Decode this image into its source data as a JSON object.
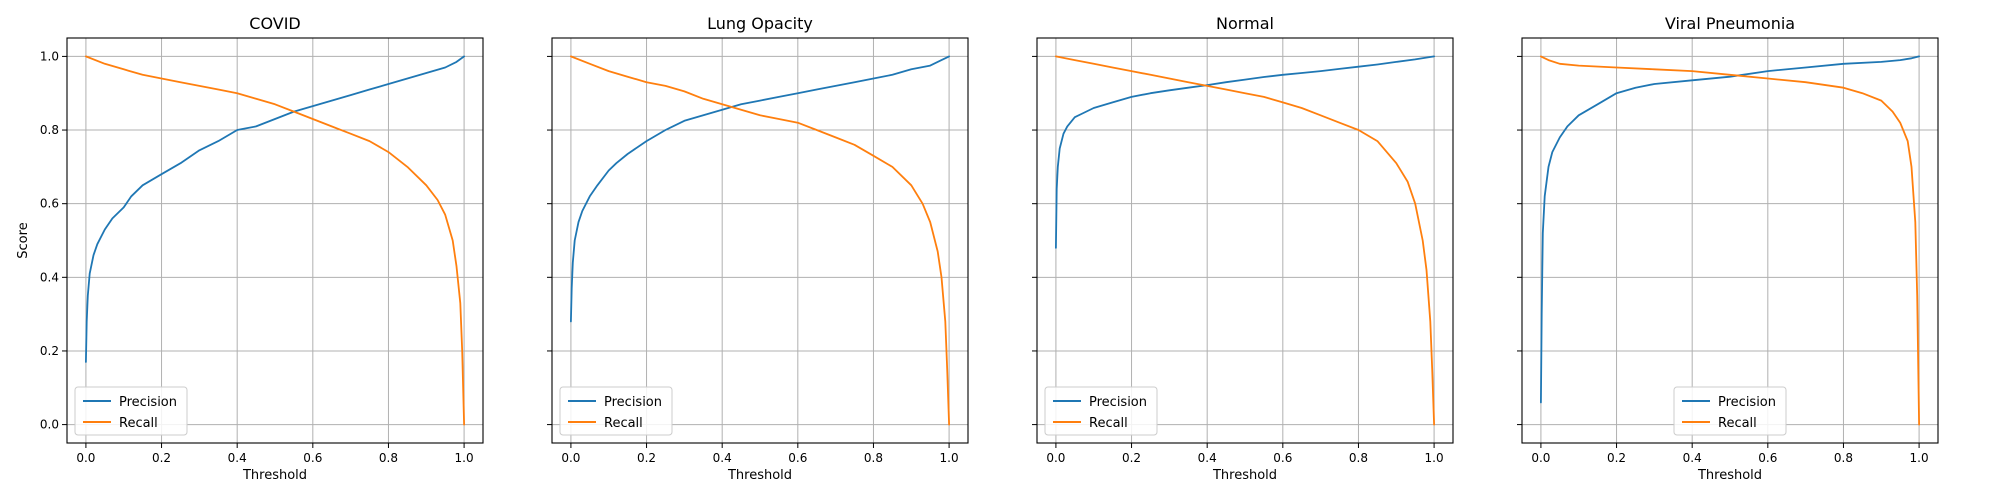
{
  "chart_data": [
    {
      "type": "line",
      "title": "COVID",
      "xlabel": "Threshold",
      "ylabel": "Score",
      "xlim": [
        -0.05,
        1.05
      ],
      "ylim": [
        -0.05,
        1.05
      ],
      "xticks": [
        "0.0",
        "0.2",
        "0.4",
        "0.6",
        "0.8",
        "1.0"
      ],
      "yticks": [
        "0.0",
        "0.2",
        "0.4",
        "0.6",
        "0.8",
        "1.0"
      ],
      "grid": true,
      "legend_position": "lower-left",
      "series": [
        {
          "name": "Precision",
          "color": "#1f77b4",
          "x": [
            0.0,
            0.002,
            0.005,
            0.01,
            0.02,
            0.03,
            0.05,
            0.07,
            0.1,
            0.12,
            0.15,
            0.2,
            0.25,
            0.3,
            0.35,
            0.4,
            0.45,
            0.5,
            0.55,
            0.6,
            0.65,
            0.7,
            0.75,
            0.8,
            0.85,
            0.9,
            0.95,
            0.98,
            1.0
          ],
          "y": [
            0.17,
            0.28,
            0.35,
            0.41,
            0.46,
            0.49,
            0.53,
            0.56,
            0.59,
            0.62,
            0.65,
            0.68,
            0.71,
            0.745,
            0.77,
            0.8,
            0.81,
            0.83,
            0.85,
            0.865,
            0.88,
            0.895,
            0.91,
            0.925,
            0.94,
            0.955,
            0.97,
            0.985,
            1.0
          ]
        },
        {
          "name": "Recall",
          "color": "#ff7f0e",
          "x": [
            0.0,
            0.05,
            0.1,
            0.15,
            0.2,
            0.25,
            0.3,
            0.35,
            0.4,
            0.45,
            0.5,
            0.55,
            0.6,
            0.65,
            0.7,
            0.75,
            0.8,
            0.85,
            0.9,
            0.93,
            0.95,
            0.97,
            0.98,
            0.99,
            0.995,
            1.0
          ],
          "y": [
            1.0,
            0.98,
            0.965,
            0.95,
            0.94,
            0.93,
            0.92,
            0.91,
            0.9,
            0.885,
            0.87,
            0.85,
            0.83,
            0.81,
            0.79,
            0.77,
            0.74,
            0.7,
            0.65,
            0.61,
            0.57,
            0.5,
            0.43,
            0.33,
            0.2,
            0.0
          ]
        }
      ]
    },
    {
      "type": "line",
      "title": "Lung Opacity",
      "xlabel": "Threshold",
      "ylabel": "",
      "xlim": [
        -0.05,
        1.05
      ],
      "ylim": [
        -0.05,
        1.05
      ],
      "xticks": [
        "0.0",
        "0.2",
        "0.4",
        "0.6",
        "0.8",
        "1.0"
      ],
      "yticks": [
        "0.0",
        "0.2",
        "0.4",
        "0.6",
        "0.8",
        "1.0"
      ],
      "grid": true,
      "legend_position": "lower-left",
      "series": [
        {
          "name": "Precision",
          "color": "#1f77b4",
          "x": [
            0.0,
            0.002,
            0.005,
            0.01,
            0.02,
            0.03,
            0.05,
            0.07,
            0.1,
            0.12,
            0.15,
            0.2,
            0.25,
            0.3,
            0.35,
            0.4,
            0.45,
            0.5,
            0.55,
            0.6,
            0.65,
            0.7,
            0.75,
            0.8,
            0.85,
            0.9,
            0.95,
            0.98,
            1.0
          ],
          "y": [
            0.28,
            0.37,
            0.44,
            0.5,
            0.55,
            0.58,
            0.62,
            0.65,
            0.69,
            0.71,
            0.735,
            0.77,
            0.8,
            0.825,
            0.84,
            0.855,
            0.87,
            0.88,
            0.89,
            0.9,
            0.91,
            0.92,
            0.93,
            0.94,
            0.95,
            0.965,
            0.975,
            0.99,
            1.0
          ]
        },
        {
          "name": "Recall",
          "color": "#ff7f0e",
          "x": [
            0.0,
            0.05,
            0.1,
            0.15,
            0.2,
            0.25,
            0.3,
            0.35,
            0.4,
            0.45,
            0.5,
            0.55,
            0.6,
            0.65,
            0.7,
            0.75,
            0.8,
            0.85,
            0.9,
            0.93,
            0.95,
            0.97,
            0.98,
            0.99,
            0.995,
            1.0
          ],
          "y": [
            1.0,
            0.98,
            0.96,
            0.945,
            0.93,
            0.92,
            0.905,
            0.885,
            0.87,
            0.855,
            0.84,
            0.83,
            0.82,
            0.8,
            0.78,
            0.76,
            0.73,
            0.7,
            0.65,
            0.6,
            0.55,
            0.47,
            0.4,
            0.28,
            0.15,
            0.0
          ]
        }
      ]
    },
    {
      "type": "line",
      "title": "Normal",
      "xlabel": "Threshold",
      "ylabel": "",
      "xlim": [
        -0.05,
        1.05
      ],
      "ylim": [
        -0.05,
        1.05
      ],
      "xticks": [
        "0.0",
        "0.2",
        "0.4",
        "0.6",
        "0.8",
        "1.0"
      ],
      "yticks": [
        "0.0",
        "0.2",
        "0.4",
        "0.6",
        "0.8",
        "1.0"
      ],
      "grid": true,
      "legend_position": "lower-left",
      "series": [
        {
          "name": "Precision",
          "color": "#1f77b4",
          "x": [
            0.0,
            0.002,
            0.005,
            0.01,
            0.02,
            0.03,
            0.05,
            0.07,
            0.1,
            0.15,
            0.2,
            0.25,
            0.3,
            0.35,
            0.4,
            0.45,
            0.5,
            0.55,
            0.6,
            0.65,
            0.7,
            0.75,
            0.8,
            0.85,
            0.9,
            0.95,
            1.0
          ],
          "y": [
            0.48,
            0.64,
            0.7,
            0.75,
            0.79,
            0.81,
            0.835,
            0.845,
            0.86,
            0.875,
            0.89,
            0.9,
            0.908,
            0.915,
            0.922,
            0.93,
            0.937,
            0.944,
            0.95,
            0.955,
            0.96,
            0.966,
            0.972,
            0.978,
            0.985,
            0.992,
            1.0
          ]
        },
        {
          "name": "Recall",
          "color": "#ff7f0e",
          "x": [
            0.0,
            0.05,
            0.1,
            0.15,
            0.2,
            0.25,
            0.3,
            0.35,
            0.4,
            0.45,
            0.5,
            0.55,
            0.6,
            0.65,
            0.7,
            0.75,
            0.8,
            0.85,
            0.9,
            0.93,
            0.95,
            0.97,
            0.98,
            0.99,
            0.995,
            1.0
          ],
          "y": [
            1.0,
            0.99,
            0.98,
            0.97,
            0.96,
            0.95,
            0.94,
            0.93,
            0.92,
            0.91,
            0.9,
            0.89,
            0.875,
            0.86,
            0.84,
            0.82,
            0.8,
            0.77,
            0.71,
            0.66,
            0.6,
            0.5,
            0.42,
            0.28,
            0.15,
            0.0
          ]
        }
      ]
    },
    {
      "type": "line",
      "title": "Viral Pneumonia",
      "xlabel": "Threshold",
      "ylabel": "",
      "xlim": [
        -0.05,
        1.05
      ],
      "ylim": [
        -0.05,
        1.05
      ],
      "xticks": [
        "0.0",
        "0.2",
        "0.4",
        "0.6",
        "0.8",
        "1.0"
      ],
      "yticks": [
        "0.0",
        "0.2",
        "0.4",
        "0.6",
        "0.8",
        "1.0"
      ],
      "grid": true,
      "legend_position": "lower-center",
      "series": [
        {
          "name": "Precision",
          "color": "#1f77b4",
          "x": [
            0.0,
            0.002,
            0.005,
            0.01,
            0.02,
            0.03,
            0.05,
            0.07,
            0.1,
            0.15,
            0.2,
            0.25,
            0.3,
            0.4,
            0.5,
            0.6,
            0.7,
            0.8,
            0.9,
            0.95,
            0.98,
            1.0
          ],
          "y": [
            0.06,
            0.3,
            0.52,
            0.62,
            0.7,
            0.74,
            0.78,
            0.81,
            0.84,
            0.87,
            0.9,
            0.915,
            0.925,
            0.935,
            0.945,
            0.96,
            0.97,
            0.98,
            0.985,
            0.99,
            0.995,
            1.0
          ]
        },
        {
          "name": "Recall",
          "color": "#ff7f0e",
          "x": [
            0.0,
            0.02,
            0.05,
            0.1,
            0.2,
            0.3,
            0.4,
            0.5,
            0.6,
            0.7,
            0.8,
            0.85,
            0.9,
            0.93,
            0.95,
            0.97,
            0.98,
            0.99,
            0.995,
            1.0
          ],
          "y": [
            1.0,
            0.99,
            0.98,
            0.975,
            0.97,
            0.965,
            0.96,
            0.95,
            0.94,
            0.93,
            0.915,
            0.9,
            0.88,
            0.85,
            0.82,
            0.77,
            0.7,
            0.55,
            0.35,
            0.0
          ]
        }
      ]
    }
  ]
}
